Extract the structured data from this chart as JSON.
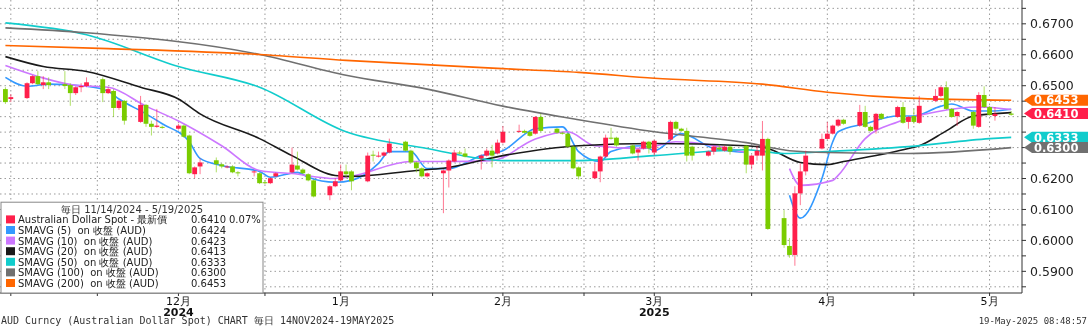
{
  "chart_data": {
    "type": "candlestick",
    "legend_title": "毎日 11/14/2024 - 5/19/2025",
    "legend": "bottom left",
    "grid": true,
    "annotations": [
      "AUD Curncy (Australian Dollar Spot) CHART  毎日 14NOV2024-19MAY2025",
      "19-May-2025 08:48:57",
      "0.6410",
      "0.07%",
      "0.6424",
      "0.6423",
      "0.6413",
      "0.6333",
      "0.6300",
      "0.6453",
      {
        "text": "0.6453",
        "x": "2025-05-19",
        "y": 0.6453
      },
      {
        "text": "0.6410",
        "x": "2025-05-19",
        "y": 0.641
      },
      {
        "text": "0.6333",
        "x": "2025-05-19",
        "y": 0.6333
      },
      {
        "text": "0.6300",
        "x": "2025-05-19",
        "y": 0.63
      }
    ],
    "xlim": [
      "2024-11-13",
      "2025-05-21"
    ],
    "xticks": [
      {
        "value": "2024-11-15",
        "label": null
      },
      {
        "value": "2024-12-01",
        "label": null
      },
      {
        "value": "2024-12-16",
        "label": "12月\n2024"
      },
      {
        "value": "2025-01-01",
        "label": null
      },
      {
        "value": "2025-01-15",
        "label": "1月"
      },
      {
        "value": "2025-02-01",
        "label": null
      },
      {
        "value": "2025-02-14",
        "label": "2月"
      },
      {
        "value": "2025-03-01",
        "label": null
      },
      {
        "value": "2025-03-14",
        "label": "3月\n2025"
      },
      {
        "value": "2025-04-01",
        "label": null
      },
      {
        "value": "2025-04-15",
        "label": "4月"
      },
      {
        "value": "2025-05-01",
        "label": null
      },
      {
        "value": "2025-05-15",
        "label": "5月"
      }
    ],
    "ylim": [
      0.583,
      0.6777
    ],
    "yticks": [
      {
        "value": 0.585,
        "label": null
      },
      {
        "value": 0.59,
        "label": "0.5900"
      },
      {
        "value": 0.595,
        "label": null
      },
      {
        "value": 0.6,
        "label": "0.6000"
      },
      {
        "value": 0.605,
        "label": null
      },
      {
        "value": 0.61,
        "label": "0.6100"
      },
      {
        "value": 0.615,
        "label": null
      },
      {
        "value": 0.62,
        "label": "0.6200"
      },
      {
        "value": 0.625,
        "label": null
      },
      {
        "value": 0.63,
        "label": null
      },
      {
        "value": 0.635,
        "label": null
      },
      {
        "value": 0.64,
        "label": null
      },
      {
        "value": 0.645,
        "label": null
      },
      {
        "value": 0.65,
        "label": "0.6500"
      },
      {
        "value": 0.655,
        "label": null
      },
      {
        "value": 0.66,
        "label": "0.6600"
      },
      {
        "value": 0.665,
        "label": null
      },
      {
        "value": 0.67,
        "label": "0.6700"
      },
      {
        "value": 0.675,
        "label": null
      }
    ],
    "x": [
      "2024-11-14",
      "2024-11-15",
      "2024-11-18",
      "2024-11-19",
      "2024-11-20",
      "2024-11-21",
      "2024-11-22",
      "2024-11-25",
      "2024-11-26",
      "2024-11-27",
      "2024-11-28",
      "2024-11-29",
      "2024-12-02",
      "2024-12-03",
      "2024-12-04",
      "2024-12-05",
      "2024-12-06",
      "2024-12-09",
      "2024-12-10",
      "2024-12-11",
      "2024-12-12",
      "2024-12-13",
      "2024-12-16",
      "2024-12-17",
      "2024-12-18",
      "2024-12-19",
      "2024-12-20",
      "2024-12-23",
      "2024-12-24",
      "2024-12-25",
      "2024-12-26",
      "2024-12-27",
      "2024-12-30",
      "2024-12-31",
      "2025-01-01",
      "2025-01-02",
      "2025-01-03",
      "2025-01-06",
      "2025-01-07",
      "2025-01-08",
      "2025-01-09",
      "2025-01-10",
      "2025-01-13",
      "2025-01-14",
      "2025-01-15",
      "2025-01-16",
      "2025-01-17",
      "2025-01-20",
      "2025-01-21",
      "2025-01-22",
      "2025-01-23",
      "2025-01-24",
      "2025-01-27",
      "2025-01-28",
      "2025-01-29",
      "2025-01-30",
      "2025-01-31",
      "2025-02-03",
      "2025-02-04",
      "2025-02-05",
      "2025-02-06",
      "2025-02-07",
      "2025-02-10",
      "2025-02-11",
      "2025-02-12",
      "2025-02-13",
      "2025-02-14",
      "2025-02-17",
      "2025-02-18",
      "2025-02-19",
      "2025-02-20",
      "2025-02-21",
      "2025-02-24",
      "2025-02-25",
      "2025-02-26",
      "2025-02-27",
      "2025-02-28",
      "2025-03-03",
      "2025-03-04",
      "2025-03-05",
      "2025-03-06",
      "2025-03-07",
      "2025-03-10",
      "2025-03-11",
      "2025-03-12",
      "2025-03-13",
      "2025-03-14",
      "2025-03-17",
      "2025-03-18",
      "2025-03-19",
      "2025-03-20",
      "2025-03-21",
      "2025-03-24",
      "2025-03-25",
      "2025-03-26",
      "2025-03-27",
      "2025-03-28",
      "2025-03-31",
      "2025-04-01",
      "2025-04-02",
      "2025-04-03",
      "2025-04-04",
      "2025-04-07",
      "2025-04-08",
      "2025-04-09",
      "2025-04-10",
      "2025-04-11",
      "2025-04-14",
      "2025-04-15",
      "2025-04-16",
      "2025-04-17",
      "2025-04-18",
      "2025-04-21",
      "2025-04-22",
      "2025-04-23",
      "2025-04-24",
      "2025-04-25",
      "2025-04-28",
      "2025-04-29",
      "2025-04-30",
      "2025-05-01",
      "2025-05-02",
      "2025-05-05",
      "2025-05-06",
      "2025-05-07",
      "2025-05-08",
      "2025-05-09",
      "2025-05-12",
      "2025-05-13",
      "2025-05-14",
      "2025-05-15",
      "2025-05-16",
      "2025-05-19"
    ],
    "series": [
      {
        "type": "candlestick",
        "name": "Australian Dollar Spot - 最新價",
        "color": "#ff1f4b",
        "colors": [
          "#7acc00",
          "#ff1f4b",
          "#ff1f4b",
          "#ff1f4b",
          "#7acc00",
          "#ff1f4b",
          "#7acc00",
          "#7acc00",
          "#7acc00",
          "#ff1f4b",
          "#ff1f4b",
          "#ff1f4b",
          "#7acc00",
          "#ff1f4b",
          "#7acc00",
          "#ff1f4b",
          "#7acc00",
          "#ff1f4b",
          "#7acc00",
          "#7acc00",
          "#ff1f4b",
          "#7acc00",
          "#ff1f4b",
          "#7acc00",
          "#7acc00",
          "#ff1f4b",
          "#ff1f4b",
          "#7acc00",
          "#7acc00",
          "#ff1f4b",
          "#7acc00",
          "#7acc00",
          "#ff1f4b",
          "#7acc00",
          "#7acc00",
          "#ff1f4b",
          "#ff1f4b",
          "#ff1f4b",
          "#7acc00",
          "#7acc00",
          "#7acc00",
          "#7acc00",
          "#ff1f4b",
          "#ff1f4b",
          "#ff1f4b",
          "#7acc00",
          "#7acc00",
          "#ff1f4b",
          "#7acc00",
          "#ff1f4b",
          "#ff1f4b",
          "#ff1f4b",
          "#7acc00",
          "#7acc00",
          "#7acc00",
          "#7acc00",
          "#ff1f4b",
          "#ff1f4b",
          "#ff1f4b",
          "#ff1f4b",
          "#7acc00",
          "#7acc00",
          "#ff1f4b",
          "#ff1f4b",
          "#7acc00",
          "#ff1f4b",
          "#ff1f4b",
          "#ff1f4b",
          "#7acc00",
          "#7acc00",
          "#ff1f4b",
          "#7acc00",
          "#7acc00",
          "#7acc00",
          "#7acc00",
          "#7acc00",
          "#7acc00",
          "#ff1f4b",
          "#ff1f4b",
          "#ff1f4b",
          "#7acc00",
          "#7acc00",
          "#7acc00",
          "#ff1f4b",
          "#ff1f4b",
          "#7acc00",
          "#ff1f4b",
          "#ff1f4b",
          "#7acc00",
          "#7acc00",
          "#7acc00",
          "#7acc00",
          "#ff1f4b",
          "#ff1f4b",
          "#7acc00",
          "#ff1f4b",
          "#7acc00",
          "#7acc00",
          "#ff1f4b",
          "#ff1f4b",
          "#ff1f4b",
          "#7acc00",
          "#7acc00",
          "#7acc00",
          "#ff1f4b",
          "#ff1f4b",
          "#ff1f4b",
          "#ff1f4b",
          "#ff1f4b",
          "#ff1f4b",
          "#ff1f4b",
          "#7acc00",
          "#ff1f4b",
          "#7acc00",
          "#7acc00",
          "#ff1f4b",
          "#7acc00",
          "#ff1f4b",
          "#7acc00",
          "#ff1f4b",
          "#7acc00",
          "#ff1f4b",
          "#ff1f4b",
          "#ff1f4b",
          "#7acc00",
          "#7acc00",
          "#ff1f4b",
          "#7acc00",
          "#ff1f4b",
          "#7acc00",
          "#7acc00",
          "#ff1f4b",
          "#7acc00"
        ],
        "ohlc": [
          [
            0.6447,
            0.6495,
            0.6441,
            0.6489
          ],
          [
            0.6463,
            0.6473,
            0.6447,
            0.6457
          ],
          [
            0.6508,
            0.6511,
            0.6457,
            0.646
          ],
          [
            0.6531,
            0.6534,
            0.6505,
            0.6508
          ],
          [
            0.6505,
            0.6547,
            0.6502,
            0.6531
          ],
          [
            0.6511,
            0.6531,
            0.6489,
            0.6502
          ],
          [
            0.6502,
            0.6527,
            0.6489,
            0.6511
          ],
          [
            0.6499,
            0.6547,
            0.6489,
            0.6505
          ],
          [
            0.6476,
            0.6508,
            0.6435,
            0.6502
          ],
          [
            0.6495,
            0.6498,
            0.647,
            0.6476
          ],
          [
            0.6499,
            0.6508,
            0.6479,
            0.6495
          ],
          [
            0.6511,
            0.6527,
            0.6495,
            0.6499
          ],
          [
            0.6476,
            0.6527,
            0.6447,
            0.6521
          ],
          [
            0.6489,
            0.6495,
            0.6473,
            0.6476
          ],
          [
            0.6428,
            0.6489,
            0.6399,
            0.6483
          ],
          [
            0.6451,
            0.6454,
            0.6422,
            0.6428
          ],
          [
            0.6387,
            0.6454,
            0.6374,
            0.6451
          ],
          [
            0.6438,
            0.6467,
            0.638,
            0.6383
          ],
          [
            0.6377,
            0.6441,
            0.6367,
            0.6438
          ],
          [
            0.6367,
            0.6387,
            0.6339,
            0.6377
          ],
          [
            0.6371,
            0.6425,
            0.6364,
            0.6367
          ],
          [
            0.6364,
            0.6371,
            0.6361,
            0.6367
          ],
          [
            0.6371,
            0.6377,
            0.6358,
            0.6361
          ],
          [
            0.6335,
            0.6374,
            0.6332,
            0.6371
          ],
          [
            0.6217,
            0.6342,
            0.6214,
            0.6339
          ],
          [
            0.6236,
            0.6239,
            0.6201,
            0.6214
          ],
          [
            0.6252,
            0.6265,
            0.6214,
            0.6239
          ],
          [
            0.6246,
            0.6268,
            0.622,
            0.6259
          ],
          [
            0.6239,
            0.6249,
            0.6233,
            0.6246
          ],
          [
            0.6239,
            0.6243,
            0.6233,
            0.6236
          ],
          [
            0.622,
            0.6243,
            0.6217,
            0.6239
          ],
          [
            0.6217,
            0.6224,
            0.6207,
            0.622
          ],
          [
            0.6223,
            0.6227,
            0.6207,
            0.622
          ],
          [
            0.6185,
            0.622,
            0.6182,
            0.6217
          ],
          [
            0.6185,
            0.6195,
            0.6182,
            0.6188
          ],
          [
            0.6201,
            0.6204,
            0.6182,
            0.6185
          ],
          [
            0.6217,
            0.622,
            0.6204,
            0.6207
          ],
          [
            0.6245,
            0.63,
            0.6217,
            0.622
          ],
          [
            0.6229,
            0.6287,
            0.6226,
            0.6242
          ],
          [
            0.6217,
            0.6233,
            0.6214,
            0.6229
          ],
          [
            0.6194,
            0.6217,
            0.6191,
            0.6214
          ],
          [
            0.6142,
            0.6198,
            0.6139,
            0.6194
          ],
          [
            0.6175,
            0.6178,
            0.613,
            0.6146
          ],
          [
            0.6191,
            0.6201,
            0.6172,
            0.6175
          ],
          [
            0.6223,
            0.6245,
            0.6191,
            0.6194
          ],
          [
            0.6214,
            0.6245,
            0.6201,
            0.6223
          ],
          [
            0.6191,
            0.6227,
            0.6162,
            0.6223
          ],
          [
            0.6274,
            0.6284,
            0.6188,
            0.6191
          ],
          [
            0.6274,
            0.629,
            0.6255,
            0.6277
          ],
          [
            0.6274,
            0.6287,
            0.6268,
            0.6271
          ],
          [
            0.6284,
            0.6287,
            0.6271,
            0.6274
          ],
          [
            0.6313,
            0.6329,
            0.6281,
            0.6284
          ],
          [
            0.629,
            0.6322,
            0.6287,
            0.6319
          ],
          [
            0.6252,
            0.6293,
            0.6249,
            0.629
          ],
          [
            0.6233,
            0.6255,
            0.622,
            0.6252
          ],
          [
            0.6207,
            0.6236,
            0.6204,
            0.6233
          ],
          [
            0.6217,
            0.622,
            0.6204,
            0.6207
          ],
          [
            0.6226,
            0.623,
            0.6088,
            0.6217
          ],
          [
            0.6258,
            0.6262,
            0.6171,
            0.6226
          ],
          [
            0.6284,
            0.6293,
            0.6252,
            0.6255
          ],
          [
            0.6281,
            0.629,
            0.6278,
            0.6284
          ],
          [
            0.6271,
            0.6297,
            0.6268,
            0.6281
          ],
          [
            0.6274,
            0.6278,
            0.6229,
            0.6265
          ],
          [
            0.629,
            0.6297,
            0.6271,
            0.6274
          ],
          [
            0.6274,
            0.6309,
            0.6236,
            0.629
          ],
          [
            0.6316,
            0.6326,
            0.6278,
            0.6281
          ],
          [
            0.6351,
            0.637,
            0.6313,
            0.6316
          ],
          [
            0.6354,
            0.6374,
            0.6348,
            0.6351
          ],
          [
            0.6348,
            0.6358,
            0.6345,
            0.6354
          ],
          [
            0.6338,
            0.6354,
            0.6335,
            0.6351
          ],
          [
            0.6399,
            0.6402,
            0.6342,
            0.6345
          ],
          [
            0.6354,
            0.6409,
            0.6351,
            0.6399
          ],
          [
            0.6348,
            0.6364,
            0.6345,
            0.6361
          ],
          [
            0.6345,
            0.6351,
            0.6342,
            0.6348
          ],
          [
            0.6303,
            0.6348,
            0.63,
            0.6345
          ],
          [
            0.6233,
            0.6306,
            0.623,
            0.6303
          ],
          [
            0.6207,
            0.6239,
            0.6197,
            0.6236
          ],
          [
            0.6223,
            0.6249,
            0.6198,
            0.6201
          ],
          [
            0.6271,
            0.6274,
            0.6188,
            0.6223
          ],
          [
            0.6332,
            0.6342,
            0.6268,
            0.6271
          ],
          [
            0.6329,
            0.6364,
            0.6326,
            0.6332
          ],
          [
            0.6307,
            0.6335,
            0.6303,
            0.6332
          ],
          [
            0.6281,
            0.631,
            0.6278,
            0.6307
          ],
          [
            0.6294,
            0.6297,
            0.6258,
            0.6284
          ],
          [
            0.6319,
            0.6322,
            0.6294,
            0.6297
          ],
          [
            0.6297,
            0.6322,
            0.6281,
            0.6319
          ],
          [
            0.6322,
            0.6326,
            0.6274,
            0.6284
          ],
          [
            0.6383,
            0.6387,
            0.6322,
            0.6326
          ],
          [
            0.6361,
            0.6387,
            0.6358,
            0.6383
          ],
          [
            0.6354,
            0.6364,
            0.6351,
            0.6361
          ],
          [
            0.6274,
            0.6364,
            0.6255,
            0.6354
          ],
          [
            0.6274,
            0.6306,
            0.6258,
            0.6303
          ],
          [
            0.6287,
            0.629,
            0.6271,
            0.6274
          ],
          [
            0.6303,
            0.6306,
            0.6277,
            0.6287
          ],
          [
            0.6294,
            0.6309,
            0.629,
            0.63
          ],
          [
            0.6303,
            0.6306,
            0.6287,
            0.629
          ],
          [
            0.6287,
            0.6306,
            0.6277,
            0.6303
          ],
          [
            0.6245,
            0.6309,
            0.6217,
            0.6306
          ],
          [
            0.6274,
            0.6277,
            0.6229,
            0.6245
          ],
          [
            0.629,
            0.6306,
            0.6258,
            0.6274
          ],
          [
            0.6328,
            0.6386,
            0.6226,
            0.6274
          ],
          [
            0.6037,
            0.6332,
            0.6034,
            0.6328
          ],
          [
            0.5985,
            0.6098,
            0.5976,
            0.6072
          ],
          [
            0.5953,
            0.6008,
            0.5944,
            0.5982
          ],
          [
            0.6152,
            0.6175,
            0.5918,
            0.5953
          ],
          [
            0.6223,
            0.6249,
            0.6114,
            0.6152
          ],
          [
            0.6274,
            0.629,
            0.621,
            0.6223
          ],
          [
            0.6328,
            0.6345,
            0.6294,
            0.6297
          ],
          [
            0.6345,
            0.6383,
            0.6326,
            0.6328
          ],
          [
            0.6371,
            0.6374,
            0.6342,
            0.6345
          ],
          [
            0.639,
            0.6393,
            0.6367,
            0.6371
          ],
          [
            0.6377,
            0.6393,
            0.6374,
            0.639
          ],
          [
            0.6415,
            0.6438,
            0.6367,
            0.6371
          ],
          [
            0.6367,
            0.6435,
            0.6364,
            0.6415
          ],
          [
            0.6354,
            0.6371,
            0.6351,
            0.6367
          ],
          [
            0.6409,
            0.6412,
            0.6345,
            0.6358
          ],
          [
            0.6393,
            0.6412,
            0.639,
            0.6409
          ],
          [
            0.6431,
            0.6435,
            0.6396,
            0.6399
          ],
          [
            0.638,
            0.6447,
            0.6377,
            0.6431
          ],
          [
            0.6399,
            0.6402,
            0.6361,
            0.6383
          ],
          [
            0.6383,
            0.6425,
            0.6377,
            0.6402
          ],
          [
            0.6435,
            0.6467,
            0.6377,
            0.638
          ],
          [
            0.6467,
            0.6489,
            0.6447,
            0.6451
          ],
          [
            0.6495,
            0.6498,
            0.6463,
            0.6467
          ],
          [
            0.6425,
            0.6514,
            0.6422,
            0.6495
          ],
          [
            0.6399,
            0.6428,
            0.6396,
            0.6425
          ],
          [
            0.6415,
            0.6418,
            0.637,
            0.6402
          ],
          [
            0.6371,
            0.6418,
            0.6361,
            0.6415
          ],
          [
            0.647,
            0.6479,
            0.6364,
            0.6367
          ],
          [
            0.6431,
            0.6498,
            0.6428,
            0.647
          ],
          [
            0.6406,
            0.6435,
            0.6403,
            0.6431
          ],
          [
            0.6409,
            0.6431,
            0.6387,
            0.6402
          ],
          [
            0.6406,
            0.6418,
            0.6403,
            0.641
          ]
        ]
      },
      {
        "type": "line",
        "name": "SMAVG (5)  on 收盤 (AUD)",
        "color": "#3399ff",
        "x": [
          "2024-11-14",
          "2024-11-18",
          "2024-11-22",
          "2024-11-29",
          "2024-12-03",
          "2024-12-05",
          "2024-12-10",
          "2024-12-13",
          "2024-12-18",
          "2024-12-20",
          "2024-12-24",
          "2024-12-31",
          "2025-01-02",
          "2025-01-07",
          "2025-01-09",
          "2025-01-14",
          "2025-01-17",
          "2025-01-22",
          "2025-01-24",
          "2025-01-28",
          "2025-01-31",
          "2025-02-04",
          "2025-02-10",
          "2025-02-14",
          "2025-02-20",
          "2025-02-25",
          "2025-02-28",
          "2025-03-04",
          "2025-03-06",
          "2025-03-12",
          "2025-03-14",
          "2025-03-19",
          "2025-03-25",
          "2025-03-31",
          "2025-04-03",
          "2025-04-04",
          "2025-04-08",
          "2025-04-10",
          "2025-04-14",
          "2025-04-16",
          "2025-04-17",
          "2025-04-22",
          "2025-04-28",
          "2025-05-01",
          "2025-05-06",
          "2025-05-08",
          "2025-05-12",
          "2025-05-15",
          "2025-05-19"
        ],
        "values": [
          0.6527,
          0.6498,
          0.6505,
          0.6498,
          0.6482,
          0.6457,
          0.6409,
          0.6377,
          0.6319,
          0.6265,
          0.6242,
          0.6223,
          0.6204,
          0.622,
          0.6204,
          0.6188,
          0.6194,
          0.6249,
          0.6287,
          0.6287,
          0.6232,
          0.6232,
          0.6274,
          0.629,
          0.6361,
          0.6367,
          0.6287,
          0.6255,
          0.6287,
          0.6306,
          0.629,
          0.6345,
          0.6297,
          0.6284,
          null,
          null,
          0.6146,
          0.6072,
          0.62,
          0.6319,
          0.6351,
          0.6377,
          0.6402,
          0.6402,
          0.6434,
          0.6441,
          0.6418,
          0.6418,
          0.6424
        ]
      },
      {
        "type": "line",
        "name": "SMAVG (10)  on 收盤 (AUD)",
        "color": "#cc77ff",
        "x": [
          "2024-11-14",
          "2024-11-20",
          "2024-11-27",
          "2024-12-03",
          "2024-12-10",
          "2024-12-16",
          "2024-12-24",
          "2024-12-31",
          "2025-01-06",
          "2025-01-14",
          "2025-01-17",
          "2025-01-28",
          "2025-02-03",
          "2025-02-12",
          "2025-02-20",
          "2025-02-26",
          "2025-03-03",
          "2025-03-12",
          "2025-03-18",
          "2025-03-31",
          "2025-04-03",
          "2025-04-08",
          "2025-04-10",
          "2025-04-16",
          "2025-04-17",
          "2025-04-22",
          "2025-04-28",
          "2025-05-05",
          "2025-05-13",
          "2025-05-19"
        ],
        "values": [
          0.6565,
          0.653,
          0.6501,
          0.6495,
          0.6434,
          0.6386,
          0.6306,
          0.6226,
          0.6216,
          0.62,
          0.6207,
          0.6255,
          0.6255,
          0.6258,
          0.6328,
          0.6351,
          0.6306,
          0.6297,
          0.6319,
          0.6284,
          null,
          0.6232,
          0.6178,
          0.6194,
          0.621,
          0.6329,
          0.6383,
          0.6415,
          0.6431,
          0.6423
        ]
      },
      {
        "type": "line",
        "name": "SMAVG (20)  on 收盤 (AUD)",
        "color": "#1a1a1a",
        "x": [
          "2024-11-14",
          "2024-11-21",
          "2024-11-29",
          "2024-12-09",
          "2024-12-16",
          "2024-12-20",
          "2024-12-31",
          "2025-01-06",
          "2025-01-14",
          "2025-01-17",
          "2025-01-29",
          "2025-02-03",
          "2025-02-14",
          "2025-02-28",
          "2025-03-14",
          "2025-03-31",
          "2025-04-04",
          "2025-04-10",
          "2025-04-15",
          "2025-04-18",
          "2025-04-30",
          "2025-05-02",
          "2025-05-07",
          "2025-05-12",
          "2025-05-19"
        ],
        "values": [
          0.6594,
          0.6562,
          0.6546,
          0.6495,
          0.6457,
          0.6409,
          0.6329,
          0.6274,
          0.621,
          0.6207,
          0.6226,
          0.6233,
          0.6274,
          0.6306,
          0.6313,
          0.6306,
          0.6297,
          0.6252,
          0.6245,
          0.6255,
          0.6297,
          0.6306,
          0.6354,
          0.6402,
          0.6413
        ]
      },
      {
        "type": "line",
        "name": "SMAVG (50)  on 收盤 (AUD)",
        "color": "#11cccc",
        "x": [
          "2024-11-14",
          "2024-11-29",
          "2024-12-16",
          "2024-12-31",
          "2025-01-16",
          "2025-01-31",
          "2025-02-14",
          "2025-02-28",
          "2025-03-14",
          "2025-03-31",
          "2025-04-07",
          "2025-04-15",
          "2025-04-30",
          "2025-05-15",
          "2025-05-19"
        ],
        "values": [
          0.6703,
          0.6665,
          0.6562,
          0.6495,
          0.6351,
          0.6297,
          0.6258,
          0.6258,
          0.6274,
          0.6293,
          0.6281,
          0.6287,
          0.6303,
          0.6329,
          0.6333
        ]
      },
      {
        "type": "line",
        "name": "SMAVG (100)  on 收盤 (AUD)",
        "color": "#707070",
        "x": [
          "2024-11-14",
          "2024-11-29",
          "2024-12-31",
          "2025-01-16",
          "2025-01-31",
          "2025-02-14",
          "2025-02-28",
          "2025-03-14",
          "2025-03-31",
          "2025-04-08",
          "2025-04-15",
          "2025-04-30",
          "2025-05-19"
        ],
        "values": [
          0.6687,
          0.6671,
          0.6601,
          0.6534,
          0.6489,
          0.6434,
          0.639,
          0.6351,
          0.6316,
          0.629,
          0.6284,
          0.6281,
          0.63
        ]
      },
      {
        "type": "line",
        "name": "SMAVG (200)  on 收盤 (AUD)",
        "color": "#ff6600",
        "x": [
          "2024-11-14",
          "2024-12-03",
          "2024-12-31",
          "2025-01-16",
          "2025-02-13",
          "2025-02-28",
          "2025-03-14",
          "2025-04-03",
          "2025-04-15",
          "2025-04-30",
          "2025-05-19"
        ],
        "values": [
          0.663,
          0.662,
          0.6601,
          0.6582,
          0.6556,
          0.6543,
          0.6524,
          0.6505,
          0.6479,
          0.646,
          0.6453
        ]
      }
    ]
  }
}
